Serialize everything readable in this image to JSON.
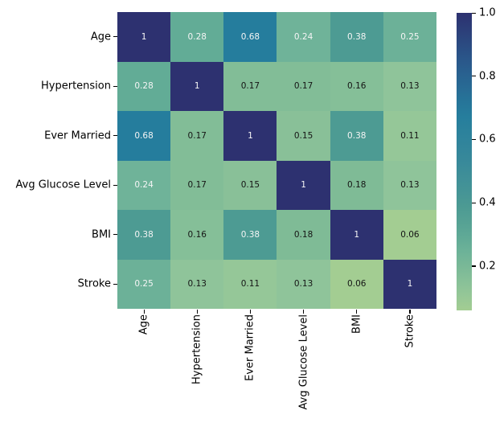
{
  "chart_data": {
    "type": "heatmap",
    "title": "",
    "x_categories": [
      "Age",
      "Hypertension",
      "Ever Married",
      "Avg Glucose Level",
      "BMI",
      "Stroke"
    ],
    "y_categories": [
      "Age",
      "Hypertension",
      "Ever Married",
      "Avg Glucose Level",
      "BMI",
      "Stroke"
    ],
    "matrix": [
      [
        1,
        0.28,
        0.68,
        0.24,
        0.38,
        0.25
      ],
      [
        0.28,
        1,
        0.17,
        0.17,
        0.16,
        0.13
      ],
      [
        0.68,
        0.17,
        1,
        0.15,
        0.38,
        0.11
      ],
      [
        0.24,
        0.17,
        0.15,
        1,
        0.18,
        0.13
      ],
      [
        0.38,
        0.16,
        0.38,
        0.18,
        1,
        0.06
      ],
      [
        0.25,
        0.13,
        0.11,
        0.13,
        0.06,
        1
      ]
    ],
    "vmin": 0.06,
    "vmax": 1.0,
    "annotations": true,
    "grid": false,
    "colorbar": {
      "position": "right",
      "tick_values": [
        1.0,
        0.8,
        0.6,
        0.4,
        0.2
      ],
      "tick_labels": [
        "1.0",
        "0.8",
        "0.6",
        "0.4",
        "0.2"
      ]
    },
    "colormap": {
      "name": "crest-like",
      "anchors": [
        [
          0.0,
          "#a3cd92"
        ],
        [
          0.074,
          "#8fc49a"
        ],
        [
          0.128,
          "#7fbb96"
        ],
        [
          0.191,
          "#6fb399"
        ],
        [
          0.234,
          "#62ac96"
        ],
        [
          0.34,
          "#4d9b93"
        ],
        [
          0.5,
          "#38899a"
        ],
        [
          0.66,
          "#257d9d"
        ],
        [
          0.83,
          "#2a5a8c"
        ],
        [
          1.0,
          "#2d3170"
        ]
      ]
    },
    "style": {
      "background": "#ffffff",
      "axis_text_color": "#000000",
      "tick_color": "#000000",
      "annot_text_light": "#f5f5f5",
      "annot_text_dark": "#151515",
      "annot_white_min_value": 0.2
    }
  }
}
